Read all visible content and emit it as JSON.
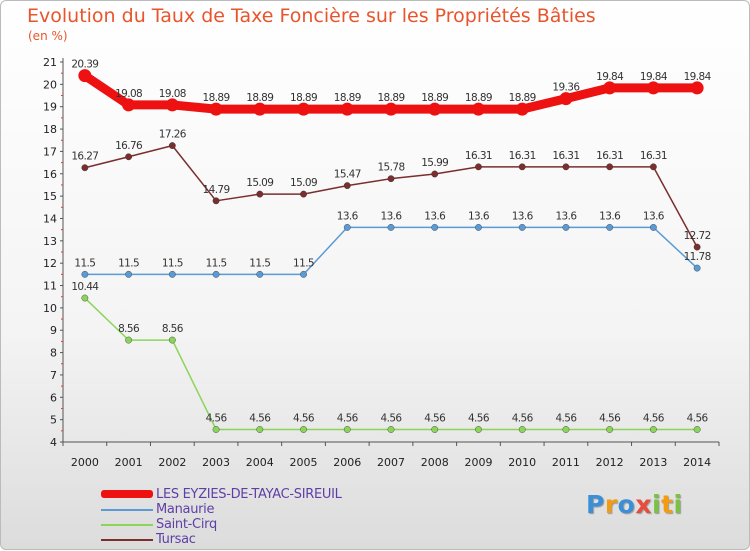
{
  "header": {
    "title": "Evolution du Taux de Taxe Foncière sur les Propriétés Bâties",
    "unit": "(en %)"
  },
  "logo": {
    "text": "Proxiti",
    "letters": [
      "P",
      "r",
      "o",
      "x",
      "i",
      "t",
      "i"
    ],
    "colors": [
      "#3a8fd6",
      "#f39c12",
      "#3a8fd6",
      "#e74c3c",
      "#7cc242",
      "#f39c12",
      "#7cc242"
    ]
  },
  "chart_data": {
    "type": "line",
    "title": "Evolution du Taux de Taxe Foncière sur les Propriétés Bâties",
    "ylabel": "(en %)",
    "xlabel": "",
    "categories": [
      "2000",
      "2001",
      "2002",
      "2003",
      "2004",
      "2005",
      "2006",
      "2007",
      "2008",
      "2009",
      "2010",
      "2011",
      "2012",
      "2013",
      "2014"
    ],
    "ylim": [
      4,
      21
    ],
    "yticks": [
      4,
      5,
      6,
      7,
      8,
      9,
      10,
      11,
      12,
      13,
      14,
      15,
      16,
      17,
      18,
      19,
      20,
      21
    ],
    "series": [
      {
        "name": "LES EYZIES-DE-TAYAC-SIREUIL",
        "color": "#ee1111",
        "width": 9,
        "values": [
          20.39,
          19.08,
          19.08,
          18.89,
          18.89,
          18.89,
          18.89,
          18.89,
          18.89,
          18.89,
          18.89,
          19.36,
          19.84,
          19.84,
          19.84
        ],
        "labels": [
          "20.39",
          "19.08",
          "19.08",
          "18.89",
          "18.89",
          "18.89",
          "18.89",
          "18.89",
          "18.89",
          "18.89",
          "18.89",
          "19.36",
          "19.84",
          "19.84",
          "19.84"
        ]
      },
      {
        "name": "Manaurie",
        "color": "#5b9bd5",
        "width": 1.5,
        "values": [
          11.5,
          11.5,
          11.5,
          11.5,
          11.5,
          11.5,
          13.6,
          13.6,
          13.6,
          13.6,
          13.6,
          13.6,
          13.6,
          13.6,
          11.78
        ],
        "labels": [
          "11.5",
          "11.5",
          "11.5",
          "11.5",
          "11.5",
          "11.5",
          "13.6",
          "13.6",
          "13.6",
          "13.6",
          "13.6",
          "13.6",
          "13.6",
          "13.6",
          "11.78"
        ]
      },
      {
        "name": "Saint-Cirq",
        "color": "#8bd45a",
        "width": 1.5,
        "values": [
          10.44,
          8.56,
          8.56,
          4.56,
          4.56,
          4.56,
          4.56,
          4.56,
          4.56,
          4.56,
          4.56,
          4.56,
          4.56,
          4.56,
          4.56
        ],
        "labels": [
          "10.44",
          "8.56",
          "8.56",
          "4.56",
          "4.56",
          "4.56",
          "4.56",
          "4.56",
          "4.56",
          "4.56",
          "4.56",
          "4.56",
          "4.56",
          "4.56",
          "4.56"
        ]
      },
      {
        "name": "Tursac",
        "color": "#7a2e2e",
        "width": 1.5,
        "values": [
          16.27,
          16.76,
          17.26,
          14.79,
          15.09,
          15.09,
          15.47,
          15.78,
          15.99,
          16.31,
          16.31,
          16.31,
          16.31,
          16.31,
          12.72
        ],
        "labels": [
          "16.27",
          "16.76",
          "17.26",
          "14.79",
          "15.09",
          "15.09",
          "15.47",
          "15.78",
          "15.99",
          "16.31",
          "16.31",
          "16.31",
          "16.31",
          "16.31",
          "12.72"
        ]
      }
    ],
    "legend": [
      "LES EYZIES-DE-TAYAC-SIREUIL",
      "Manaurie",
      "Saint-Cirq",
      "Tursac"
    ],
    "legend_position": "bottom-left"
  }
}
